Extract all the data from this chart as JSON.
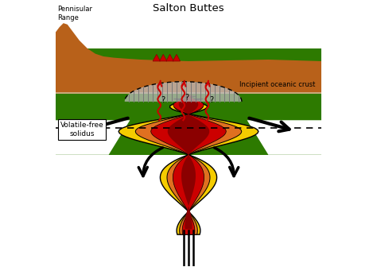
{
  "title": "Salton Buttes",
  "label_pennisular": "Pennisular\nRange",
  "label_oceanic": "Incipient oceanic crust",
  "label_solidus": "Volatile-free\nsolidus",
  "bg_color": "#ffffff",
  "brown_color": "#b8611a",
  "green_color": "#2d7a00",
  "red_color": "#cc0000",
  "dark_red_color": "#8b0000",
  "orange_color": "#e07020",
  "yellow_color": "#f5cc00",
  "white_color": "#ffffff",
  "gray_hatch": "#aaaaaa",
  "arrow_color": "#000000",
  "dashed_color": "#555555"
}
